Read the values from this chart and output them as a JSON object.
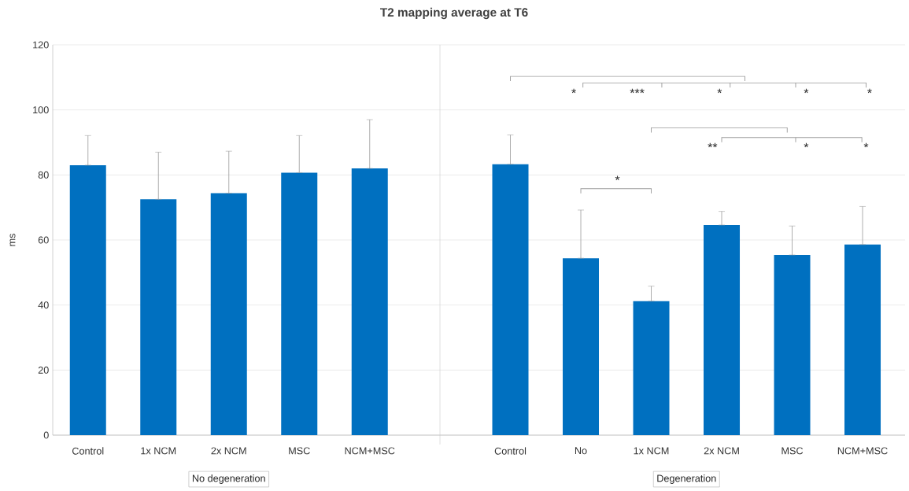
{
  "chart_data": [
    {
      "type": "bar",
      "title": "T2 mapping average at T6",
      "ylabel": "ms",
      "categories": [
        "Control",
        "1x NCM",
        "2x NCM",
        "MSC",
        "NCM+MSC"
      ],
      "values": [
        83.0,
        72.5,
        74.4,
        80.7,
        82.0
      ],
      "errors": [
        [
          83.0,
          92.1
        ],
        [
          72.5,
          87.0
        ],
        [
          74.4,
          87.3
        ],
        [
          80.7,
          92.1
        ],
        [
          82.0,
          97.0
        ]
      ],
      "color": "#0070c0",
      "ylim": [
        0,
        120
      ],
      "yticks": [
        0,
        20,
        40,
        60,
        80,
        100,
        120
      ],
      "grid": "y",
      "annotations": [
        "No degeneration"
      ]
    },
    {
      "type": "bar",
      "categories": [
        "Control",
        "No",
        "1x NCM",
        "2x NCM",
        "MSC",
        "NCM+MSC"
      ],
      "values": [
        83.3,
        54.4,
        41.2,
        64.6,
        55.4,
        58.6
      ],
      "errors": [
        [
          83.3,
          92.3
        ],
        [
          54.4,
          69.2
        ],
        [
          41.2,
          45.8
        ],
        [
          64.6,
          68.8
        ],
        [
          55.4,
          64.3
        ],
        [
          58.6,
          70.3
        ]
      ],
      "color": "#0070c0",
      "ylim": [
        0,
        120
      ],
      "yticks": [
        0,
        20,
        40,
        60,
        80,
        100,
        120
      ],
      "grid": "y",
      "tick_labels": "x",
      "annotations": [
        "Degeneration",
        "*",
        "***",
        "*",
        "*",
        "*",
        "**",
        "*",
        "*",
        "*"
      ]
    }
  ]
}
